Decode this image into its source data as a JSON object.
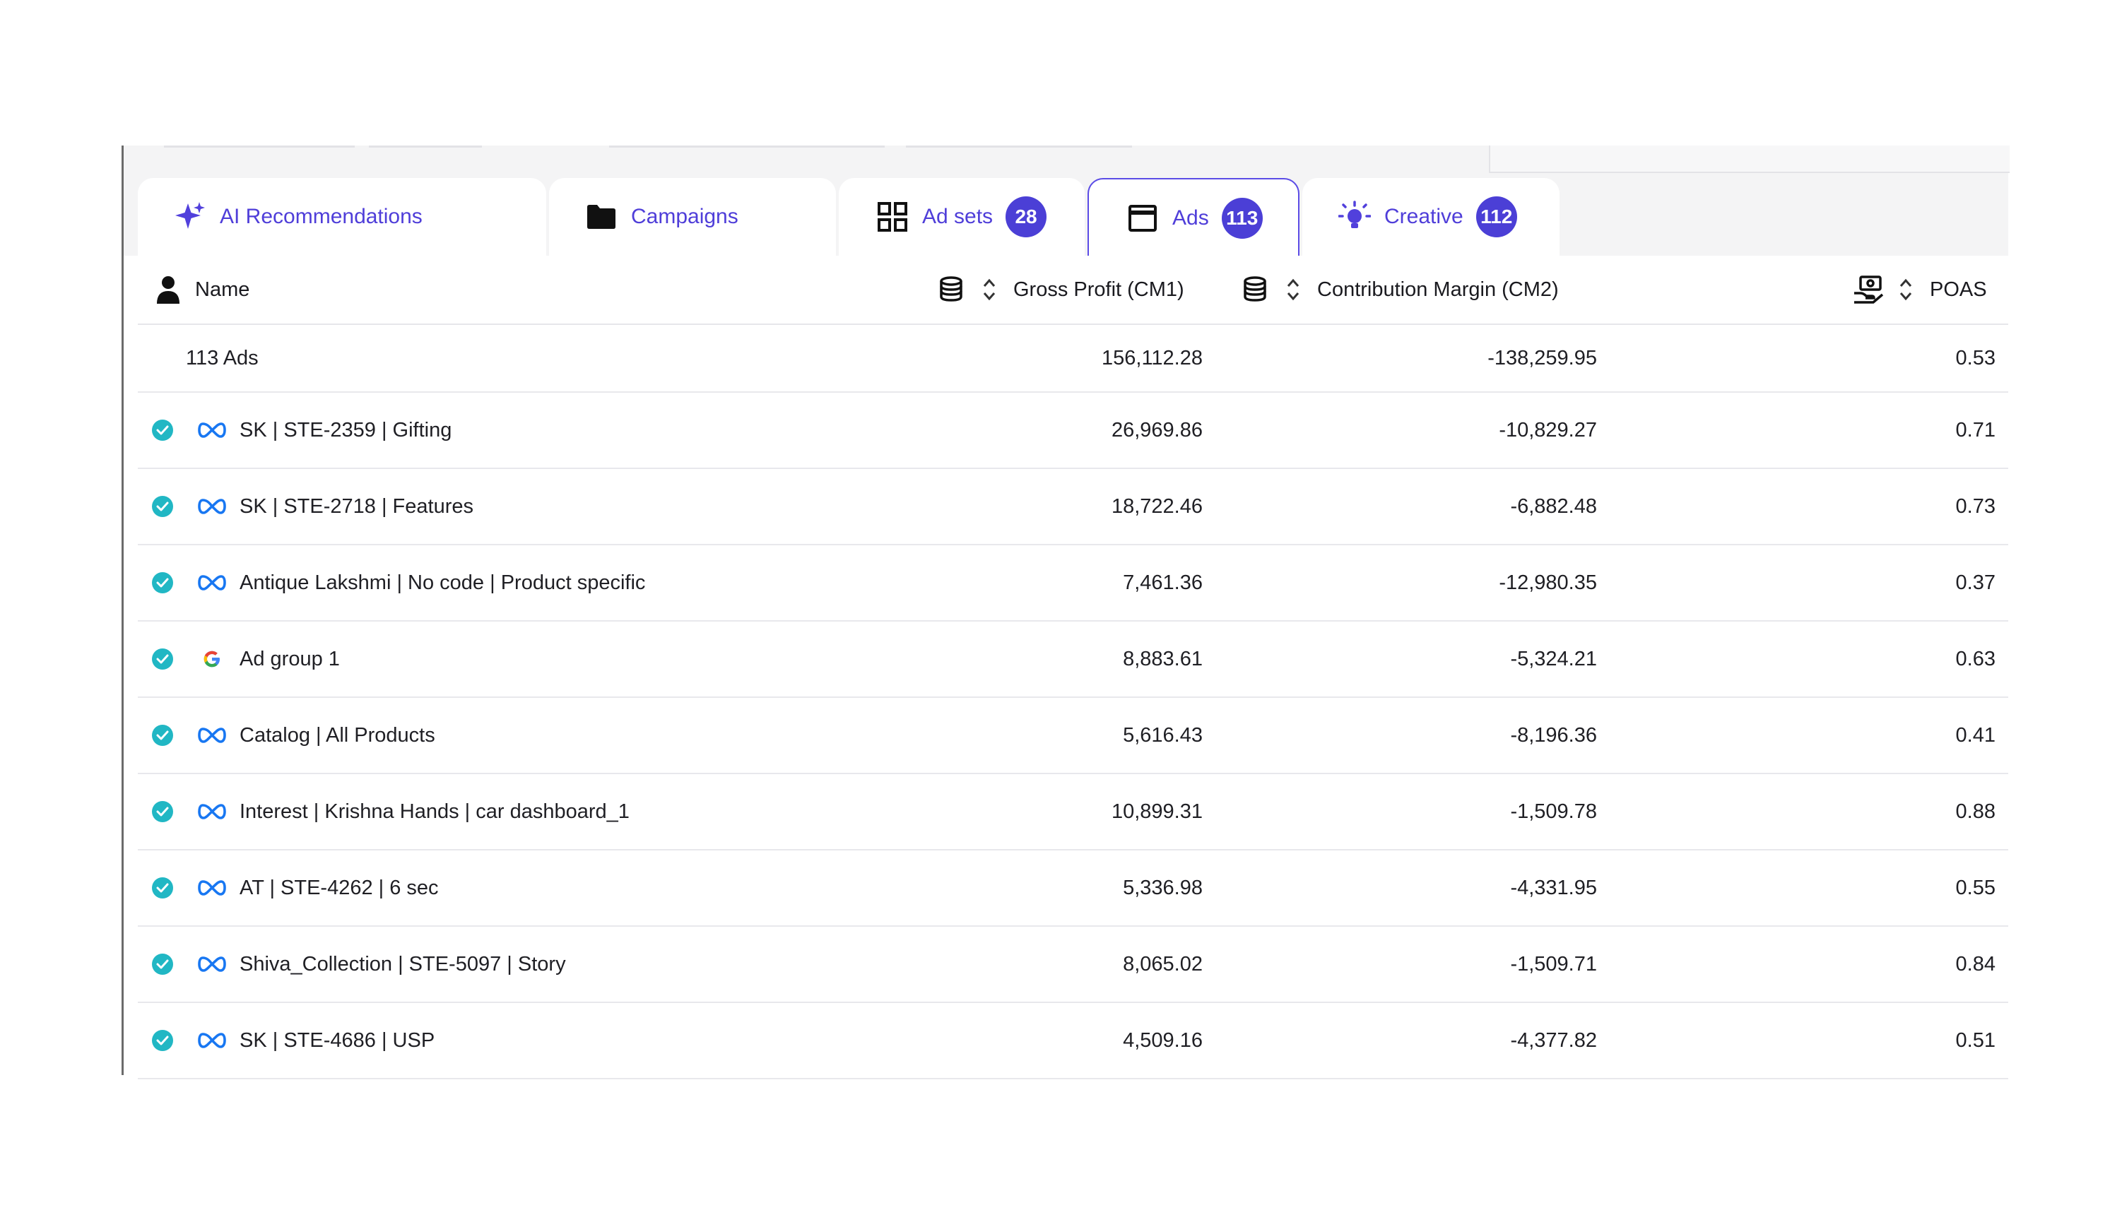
{
  "tabs": [
    {
      "label": "AI Recommendations",
      "icon": "sparkle-icon",
      "badge": null
    },
    {
      "label": "Campaigns",
      "icon": "folder-icon",
      "badge": null
    },
    {
      "label": "Ad sets",
      "icon": "grid-icon",
      "badge": "28"
    },
    {
      "label": "Ads",
      "icon": "window-icon",
      "badge": "113",
      "active": true
    },
    {
      "label": "Creative",
      "icon": "lightbulb-icon",
      "badge": "112"
    }
  ],
  "columns": {
    "name": "Name",
    "gross_profit": "Gross Profit (CM1)",
    "contribution_margin": "Contribution Margin (CM2)",
    "poas": "POAS"
  },
  "summary": {
    "label": "113 Ads",
    "gross_profit": "156,112.28",
    "contribution_margin": "-138,259.95",
    "poas": "0.53"
  },
  "rows": [
    {
      "name": "SK | STE-2359 | Gifting",
      "platform": "meta",
      "gross_profit": "26,969.86",
      "contribution_margin": "-10,829.27",
      "poas": "0.71"
    },
    {
      "name": "SK | STE-2718 | Features",
      "platform": "meta",
      "gross_profit": "18,722.46",
      "contribution_margin": "-6,882.48",
      "poas": "0.73"
    },
    {
      "name": "Antique Lakshmi | No code | Product specific",
      "platform": "meta",
      "gross_profit": "7,461.36",
      "contribution_margin": "-12,980.35",
      "poas": "0.37"
    },
    {
      "name": "Ad group 1",
      "platform": "google",
      "gross_profit": "8,883.61",
      "contribution_margin": "-5,324.21",
      "poas": "0.63"
    },
    {
      "name": "Catalog | All Products",
      "platform": "meta",
      "gross_profit": "5,616.43",
      "contribution_margin": "-8,196.36",
      "poas": "0.41"
    },
    {
      "name": "Interest | Krishna Hands | car dashboard_1",
      "platform": "meta",
      "gross_profit": "10,899.31",
      "contribution_margin": "-1,509.78",
      "poas": "0.88"
    },
    {
      "name": "AT | STE-4262 | 6 sec",
      "platform": "meta",
      "gross_profit": "5,336.98",
      "contribution_margin": "-4,331.95",
      "poas": "0.55"
    },
    {
      "name": "Shiva_Collection | STE-5097 | Story",
      "platform": "meta",
      "gross_profit": "8,065.02",
      "contribution_margin": "-1,509.71",
      "poas": "0.84"
    },
    {
      "name": "SK | STE-4686 | USP",
      "platform": "meta",
      "gross_profit": "4,509.16",
      "contribution_margin": "-4,377.82",
      "poas": "0.51"
    }
  ],
  "colors": {
    "accent": "#4b3fd6",
    "status_active": "#21b7c4",
    "meta_blue": "#1877f2"
  }
}
